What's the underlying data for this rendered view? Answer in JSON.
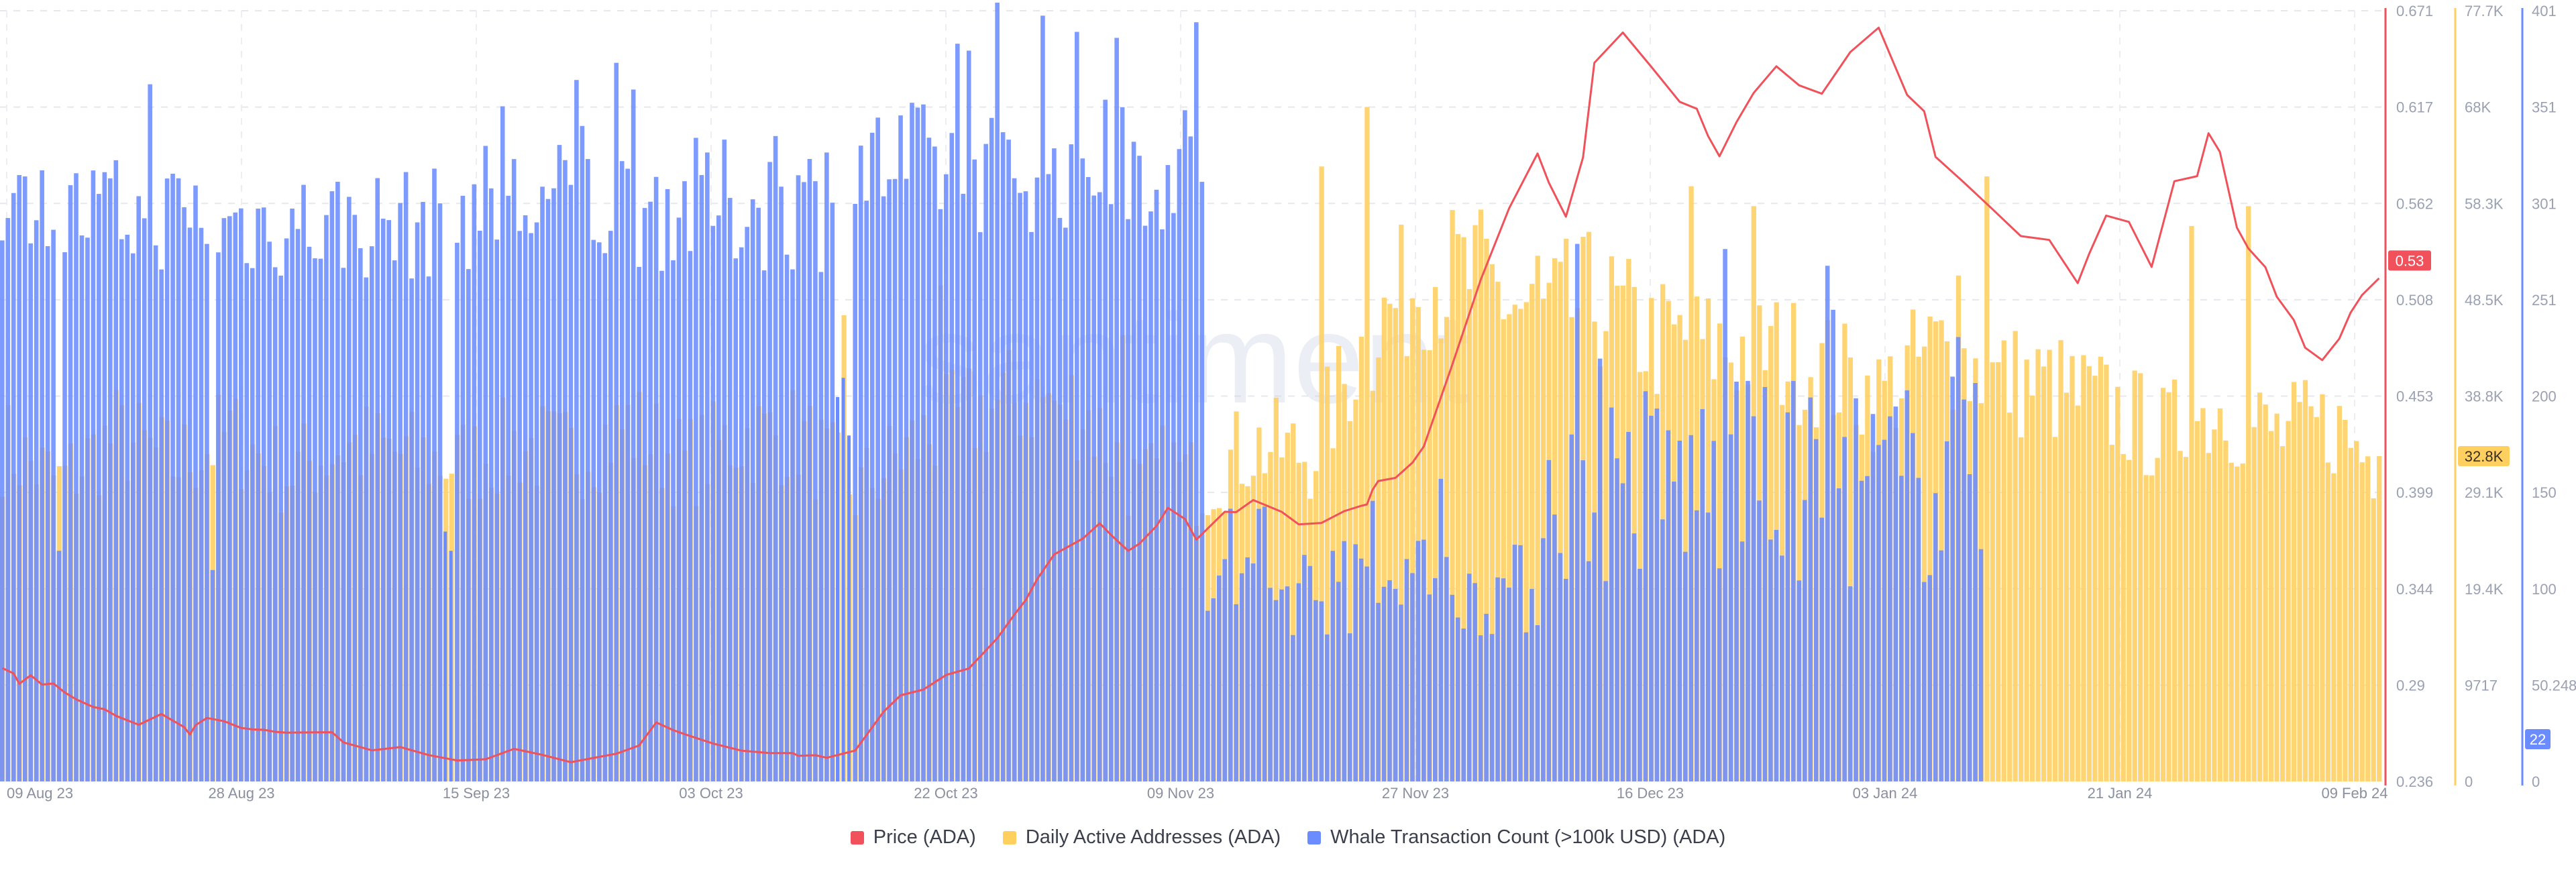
{
  "chart_data": {
    "type": "bar+line",
    "watermark": "santiment",
    "x_ticks": [
      "09 Aug 23",
      "28 Aug 23",
      "15 Sep 23",
      "03 Oct 23",
      "22 Oct 23",
      "09 Nov 23",
      "27 Nov 23",
      "16 Dec 23",
      "03 Jan 24",
      "21 Jan 24",
      "09 Feb 24"
    ],
    "axes": {
      "price": {
        "label": "Price (ADA)",
        "ticks": [
          "0.671",
          "0.617",
          "0.562",
          "0.508",
          "0.453",
          "0.399",
          "0.344",
          "0.29",
          "0.236"
        ],
        "range": [
          0.236,
          0.671
        ],
        "color": "#f0515a"
      },
      "daa": {
        "label": "Daily Active Addresses (ADA)",
        "ticks": [
          "77.7K",
          "68K",
          "58.3K",
          "48.5K",
          "38.8K",
          "29.1K",
          "19.4K",
          "9717",
          "0"
        ],
        "range": [
          0,
          77700
        ],
        "color": "#ffcf60"
      },
      "whale": {
        "label": "Whale Transaction Count (>100k USD) (ADA)",
        "ticks": [
          "401",
          "351",
          "301",
          "251",
          "200",
          "150",
          "100",
          "50.248",
          "0"
        ],
        "range": [
          0,
          401
        ],
        "color": "#6b8cff"
      }
    },
    "current_labels": {
      "price": "0.53",
      "daa": "32.8K",
      "whale": "22"
    },
    "legend": [
      {
        "label": "Price (ADA)",
        "color": "#f0515a"
      },
      {
        "label": "Daily Active Addresses (ADA)",
        "color": "#ffcf60"
      },
      {
        "label": "Whale Transaction Count (>100k USD) (ADA)",
        "color": "#6b8cff"
      }
    ],
    "series": [
      {
        "name": "Price (ADA)",
        "type": "line",
        "axis": "price",
        "x": [
          0,
          2,
          3,
          5,
          7,
          9,
          11,
          13,
          16,
          18,
          20,
          24,
          28,
          32,
          33,
          34,
          36,
          39,
          42,
          44,
          46,
          48,
          50,
          55,
          58,
          60,
          65,
          70,
          75,
          80,
          85,
          90,
          95,
          100,
          105,
          108,
          112,
          115,
          118,
          120,
          125,
          130,
          135,
          139,
          140,
          143,
          145,
          150,
          155,
          158,
          162,
          166,
          170,
          175,
          178,
          180,
          182,
          185,
          190,
          193,
          195,
          198,
          200,
          203,
          205,
          208,
          210,
          215,
          217,
          220,
          225,
          228,
          232,
          236,
          239,
          240,
          241,
          242,
          245,
          248,
          250,
          255,
          260,
          265,
          270,
          272,
          275,
          278,
          280,
          285,
          290,
          295,
          298,
          300,
          302,
          305,
          308,
          312,
          316,
          320,
          325,
          330,
          335,
          338,
          340,
          345,
          350,
          355,
          360,
          365,
          367,
          370,
          374,
          378,
          382,
          386,
          388,
          390,
          393,
          395,
          398,
          400,
          403,
          405,
          408,
          411,
          413,
          415,
          418
        ],
        "values": [
          0.3,
          0.297,
          0.293,
          0.295,
          0.292,
          0.29,
          0.288,
          0.282,
          0.278,
          0.275,
          0.272,
          0.268,
          0.275,
          0.268,
          0.262,
          0.268,
          0.273,
          0.27,
          0.268,
          0.266,
          0.265,
          0.264,
          0.263,
          0.263,
          0.262,
          0.258,
          0.253,
          0.255,
          0.252,
          0.248,
          0.25,
          0.253,
          0.25,
          0.248,
          0.249,
          0.252,
          0.256,
          0.27,
          0.265,
          0.262,
          0.256,
          0.253,
          0.252,
          0.253,
          0.249,
          0.252,
          0.248,
          0.255,
          0.275,
          0.285,
          0.288,
          0.296,
          0.3,
          0.315,
          0.33,
          0.34,
          0.35,
          0.365,
          0.373,
          0.38,
          0.375,
          0.366,
          0.372,
          0.38,
          0.39,
          0.383,
          0.371,
          0.388,
          0.389,
          0.394,
          0.39,
          0.38,
          0.381,
          0.39,
          0.392,
          0.394,
          0.402,
          0.407,
          0.407,
          0.415,
          0.425,
          0.47,
          0.52,
          0.56,
          0.59,
          0.575,
          0.555,
          0.59,
          0.64,
          0.66,
          0.64,
          0.62,
          0.615,
          0.6,
          0.59,
          0.61,
          0.625,
          0.64,
          0.63,
          0.623,
          0.648,
          0.661,
          0.625,
          0.615,
          0.59,
          0.573,
          0.56,
          0.545,
          0.54,
          0.518,
          0.535,
          0.556,
          0.55,
          0.525,
          0.575,
          0.578,
          0.6,
          0.59,
          0.55,
          0.537,
          0.525,
          0.51,
          0.497,
          0.479,
          0.474,
          0.485,
          0.5,
          0.51,
          0.52
        ]
      },
      {
        "name": "Daily Active Addresses (ADA)",
        "type": "bar",
        "axis": "daa",
        "anchors_x": [
          0,
          10,
          20,
          30,
          40,
          50,
          60,
          70,
          80,
          90,
          100,
          110,
          120,
          130,
          140,
          150,
          160,
          170,
          180,
          190,
          200,
          205,
          210,
          220,
          230,
          240,
          250,
          260,
          270,
          280,
          290,
          300,
          310,
          320,
          330,
          340,
          350,
          360,
          370,
          380,
          390,
          400,
          410,
          418
        ],
        "anchors_v": [
          35000,
          31000,
          36000,
          33000,
          36000,
          32000,
          35000,
          34000,
          33000,
          35000,
          34000,
          37000,
          33000,
          36000,
          36000,
          30000,
          35000,
          38000,
          40000,
          39000,
          30000,
          33000,
          31000,
          35000,
          34000,
          46000,
          53000,
          52000,
          48000,
          50000,
          46000,
          45000,
          45000,
          43000,
          40000,
          45000,
          42000,
          41000,
          39000,
          36000,
          39000,
          36000,
          37000,
          32800
        ],
        "peaks": [
          [
            240,
            68000
          ],
          [
            270,
            53000
          ],
          [
            297,
            60000
          ],
          [
            308,
            58000
          ],
          [
            232,
            62000
          ],
          [
            385,
            56000
          ],
          [
            395,
            58000
          ],
          [
            349,
            61000
          ],
          [
            344,
            51000
          ],
          [
            197,
            45000
          ],
          [
            186,
            38000
          ],
          [
            165,
            50000
          ],
          [
            148,
            47000
          ]
        ]
      },
      {
        "name": "Whale Transaction Count (>100k USD) (ADA)",
        "type": "bar",
        "axis": "whale",
        "segments": [
          {
            "from": 0,
            "to": 9,
            "base": 300,
            "spread": 22
          },
          {
            "from": 10,
            "to": 37,
            "base": 295,
            "spread": 30
          },
          {
            "from": 38,
            "to": 77,
            "base": 290,
            "spread": 30
          },
          {
            "from": 80,
            "to": 146,
            "base": 300,
            "spread": 35
          },
          {
            "from": 150,
            "to": 211,
            "base": 320,
            "spread": 35
          },
          {
            "from": 212,
            "to": 270,
            "base": 100,
            "spread": 25
          },
          {
            "from": 271,
            "to": 348,
            "base": 155,
            "spread": 55
          }
        ],
        "spikes": [
          [
            10,
            120
          ],
          [
            37,
            110
          ],
          [
            78,
            130
          ],
          [
            79,
            120
          ],
          [
            147,
            200
          ],
          [
            148,
            210
          ],
          [
            149,
            180
          ],
          [
            111,
            360
          ],
          [
            189,
            390
          ],
          [
            210,
            395
          ],
          [
            281,
            220
          ],
          [
            308,
            190
          ],
          [
            340,
            150
          ]
        ]
      }
    ]
  }
}
